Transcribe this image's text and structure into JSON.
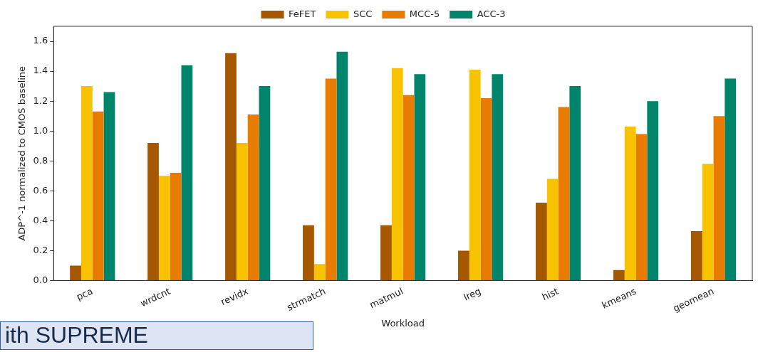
{
  "chart_data": {
    "type": "bar",
    "xlabel": "Workload",
    "ylabel": "ADP^-1 normalized to CMOS baseline",
    "categories": [
      "pca",
      "wrdcnt",
      "revidx",
      "strmatch",
      "matmul",
      "lreg",
      "hist",
      "kmeans",
      "geomean"
    ],
    "series": [
      {
        "name": "FeFET",
        "color": "#a65800",
        "values": [
          0.1,
          0.92,
          1.52,
          0.37,
          0.37,
          0.2,
          0.52,
          0.07,
          0.33
        ]
      },
      {
        "name": "SCC",
        "color": "#f8c200",
        "values": [
          1.3,
          0.7,
          0.92,
          0.11,
          1.42,
          1.41,
          0.68,
          1.03,
          0.78
        ]
      },
      {
        "name": "MCC-5",
        "color": "#e87c00",
        "values": [
          1.13,
          0.72,
          1.11,
          1.35,
          1.24,
          1.22,
          1.16,
          0.98,
          1.1
        ]
      },
      {
        "name": "ACC-3",
        "color": "#00846c",
        "values": [
          1.26,
          1.44,
          1.3,
          1.53,
          1.38,
          1.38,
          1.3,
          1.2,
          1.35
        ]
      }
    ],
    "ylim": [
      0,
      1.7
    ],
    "yticks": [
      {
        "value": 0,
        "label": "0.0"
      },
      0.2,
      0.4,
      0.6,
      0.8,
      {
        "value": 1,
        "label": "1.0"
      },
      1.2,
      1.4,
      1.6
    ],
    "legend": "top",
    "grid": false,
    "annotations": [
      "ith SUPREME"
    ]
  }
}
